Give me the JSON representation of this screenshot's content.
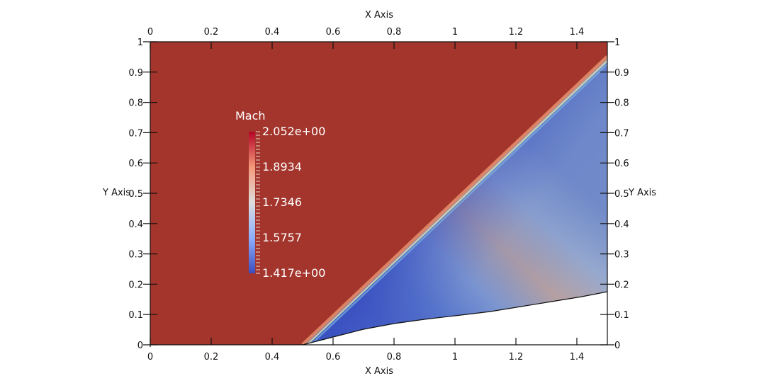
{
  "chart_data": {
    "type": "heatmap",
    "title": "",
    "field": "Mach",
    "xlabel": "X Axis",
    "ylabel": "Y Axis",
    "xlim": [
      0,
      1.5
    ],
    "ylim": [
      0,
      1
    ],
    "x_ticks": [
      "0",
      "0.2",
      "0.4",
      "0.6",
      "0.8",
      "1",
      "1.2",
      "1.4"
    ],
    "x_tick_values": [
      0,
      0.2,
      0.4,
      0.6,
      0.8,
      1.0,
      1.2,
      1.4
    ],
    "y_ticks": [
      "0",
      "0.1",
      "0.2",
      "0.3",
      "0.4",
      "0.5",
      "0.6",
      "0.7",
      "0.8",
      "0.9",
      "1"
    ],
    "y_tick_values": [
      0,
      0.1,
      0.2,
      0.3,
      0.4,
      0.5,
      0.6,
      0.7,
      0.8,
      0.9,
      1.0
    ],
    "grid": false,
    "colorbar": {
      "title": "Mach",
      "min": 1.417,
      "max": 2.052,
      "labels": [
        "2.052e+00",
        "1.8934",
        "1.7346",
        "1.5757",
        "1.417e+00"
      ],
      "label_values": [
        2.052,
        1.8934,
        1.7346,
        1.5757,
        1.417
      ],
      "colormap": "cool-to-warm",
      "colors": [
        "#3b4cc0",
        "#8db0fe",
        "#dddddd",
        "#f4987a",
        "#b40426"
      ],
      "position": "upper-left-inside"
    },
    "regions": [
      {
        "name": "freestream",
        "mach": 2.05,
        "color": "#a3352c"
      },
      {
        "name": "post-shock-near-wall",
        "mach": 1.45,
        "color": "#4a67c8"
      },
      {
        "name": "expansion-band",
        "mach": 1.75,
        "color": "#c7a89a"
      },
      {
        "name": "far-field-lower-right",
        "mach": 1.6,
        "color": "#7b93c9"
      }
    ],
    "shock_line": [
      [
        0.5,
        0.0
      ],
      [
        1.5,
        0.95
      ]
    ],
    "wall_profile": [
      [
        0.5,
        0.0
      ],
      [
        0.6,
        0.025
      ],
      [
        0.7,
        0.05
      ],
      [
        0.8,
        0.07
      ],
      [
        0.9,
        0.083
      ],
      [
        1.0,
        0.095
      ],
      [
        1.1,
        0.108
      ],
      [
        1.2,
        0.125
      ],
      [
        1.3,
        0.142
      ],
      [
        1.4,
        0.158
      ],
      [
        1.5,
        0.175
      ]
    ]
  },
  "axes": {
    "x_top_title": "X Axis",
    "x_bottom_title": "X Axis",
    "y_left_title": "Y Axis",
    "y_right_title": "Y Axis"
  }
}
